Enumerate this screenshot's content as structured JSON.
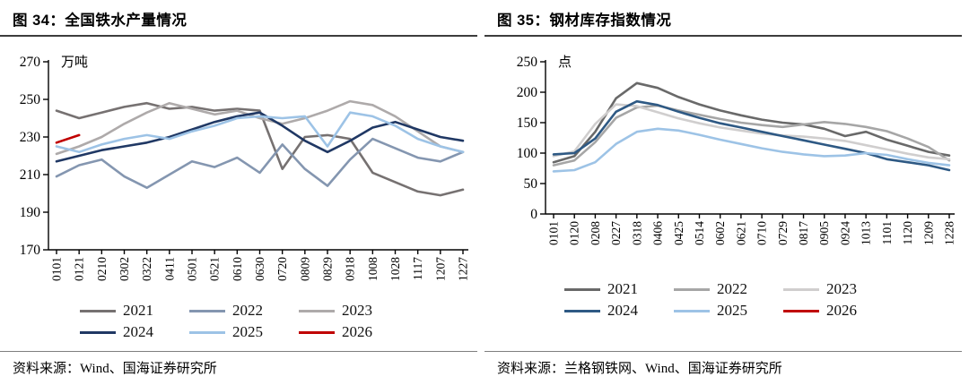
{
  "figures": [
    {
      "title": "图 34：全国铁水产量情况",
      "source": "资料来源：Wind、国海证券研究所"
    },
    {
      "title": "图 35：钢材库存指数情况",
      "source": "资料来源：兰格钢铁网、Wind、国海证券研究所"
    }
  ],
  "chart_data": [
    {
      "type": "line",
      "title": "全国铁水产量情况",
      "unit_label": "万吨",
      "ylim": [
        170,
        270
      ],
      "yticks": [
        170,
        190,
        210,
        230,
        250,
        270
      ],
      "grid": false,
      "legend_position": "bottom",
      "x_tick_labels": [
        "0101",
        "0121",
        "0210",
        "0302",
        "0322",
        "0411",
        "0501",
        "0521",
        "0610",
        "0630",
        "0720",
        "0809",
        "0829",
        "0918",
        "1008",
        "1028",
        "1117",
        "1207",
        "1227"
      ],
      "series": [
        {
          "name": "2021",
          "color": "#767171",
          "values": [
            244,
            240,
            243,
            246,
            248,
            245,
            246,
            244,
            245,
            244,
            213,
            230,
            231,
            229,
            211,
            206,
            201,
            199,
            202
          ]
        },
        {
          "name": "2022",
          "color": "#8496B0",
          "values": [
            209,
            215,
            218,
            209,
            203,
            210,
            217,
            214,
            219,
            211,
            226,
            213,
            204,
            218,
            229,
            224,
            219,
            217,
            222
          ]
        },
        {
          "name": "2023",
          "color": "#AEAAAA",
          "values": [
            221,
            225,
            230,
            237,
            243,
            248,
            245,
            242,
            244,
            240,
            237,
            240,
            244,
            249,
            247,
            241,
            233,
            225,
            222
          ]
        },
        {
          "name": "2024",
          "color": "#203864",
          "values": [
            217,
            220,
            223,
            225,
            227,
            230,
            234,
            238,
            241,
            243,
            236,
            228,
            222,
            228,
            235,
            238,
            234,
            230,
            228
          ]
        },
        {
          "name": "2025",
          "color": "#9DC3E6",
          "values": [
            225,
            222,
            226,
            229,
            231,
            229,
            233,
            236,
            240,
            241,
            240,
            241,
            225,
            243,
            241,
            236,
            229,
            225,
            222
          ]
        },
        {
          "name": "2026",
          "color": "#C00000",
          "values": [
            227,
            231,
            null,
            null,
            null,
            null,
            null,
            null,
            null,
            null,
            null,
            null,
            null,
            null,
            null,
            null,
            null,
            null,
            null
          ]
        }
      ]
    },
    {
      "type": "line",
      "title": "钢材库存指数情况",
      "unit_label": "点",
      "ylim": [
        0,
        250
      ],
      "yticks": [
        0,
        50,
        100,
        150,
        200,
        250
      ],
      "grid": false,
      "legend_position": "bottom",
      "x_tick_labels": [
        "0101",
        "0120",
        "0208",
        "0227",
        "0318",
        "0406",
        "0425",
        "0514",
        "0602",
        "0621",
        "0710",
        "0729",
        "0817",
        "0905",
        "0924",
        "1013",
        "1101",
        "1120",
        "1209",
        "1228"
      ],
      "series": [
        {
          "name": "2021",
          "color": "#696969",
          "values": [
            85,
            95,
            135,
            190,
            215,
            207,
            192,
            180,
            170,
            162,
            155,
            150,
            147,
            140,
            128,
            135,
            122,
            112,
            102,
            96
          ]
        },
        {
          "name": "2022",
          "color": "#A6A6A6",
          "values": [
            80,
            88,
            118,
            158,
            175,
            178,
            170,
            163,
            156,
            150,
            146,
            143,
            147,
            151,
            148,
            143,
            136,
            124,
            110,
            88
          ]
        },
        {
          "name": "2023",
          "color": "#D0CECE",
          "values": [
            95,
            103,
            148,
            180,
            177,
            167,
            157,
            149,
            142,
            137,
            132,
            129,
            127,
            124,
            120,
            113,
            106,
            99,
            93,
            90
          ]
        },
        {
          "name": "2024",
          "color": "#2E5984",
          "values": [
            98,
            100,
            124,
            168,
            185,
            179,
            168,
            158,
            149,
            142,
            135,
            128,
            121,
            114,
            107,
            100,
            90,
            85,
            80,
            72
          ]
        },
        {
          "name": "2025",
          "color": "#9DC3E6",
          "values": [
            70,
            72,
            85,
            115,
            135,
            140,
            137,
            130,
            122,
            115,
            108,
            102,
            98,
            95,
            96,
            100,
            97,
            90,
            84,
            80
          ]
        },
        {
          "name": "2026",
          "color": "#C00000",
          "values": [
            97,
            null,
            null,
            null,
            null,
            null,
            null,
            null,
            null,
            null,
            null,
            null,
            null,
            null,
            null,
            null,
            null,
            null,
            null,
            null
          ]
        }
      ]
    }
  ]
}
